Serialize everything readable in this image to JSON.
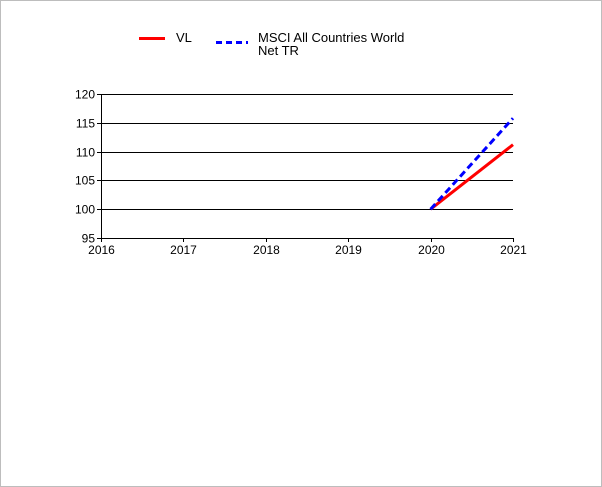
{
  "chart_data": {
    "type": "line",
    "title": "",
    "xlabel": "",
    "ylabel": "",
    "x_ticks": [
      "2016",
      "2017",
      "2018",
      "2019",
      "2020",
      "2021"
    ],
    "xlim": [
      2016,
      2021
    ],
    "y_ticks": [
      "120",
      "115",
      "110",
      "105",
      "100",
      "95"
    ],
    "ylim": [
      95,
      120
    ],
    "grid": "horizontal",
    "legend": "top",
    "series": [
      {
        "name": "VL",
        "color": "#ff0000",
        "dash": "solid",
        "x": [
          2020,
          2021
        ],
        "y": [
          100,
          111.2
        ]
      },
      {
        "name_lines": [
          "MSCI All Countries World",
          "Net TR"
        ],
        "color": "#0000ff",
        "dash": "dashed",
        "x": [
          2020,
          2021
        ],
        "y": [
          100,
          115.8
        ]
      }
    ]
  }
}
